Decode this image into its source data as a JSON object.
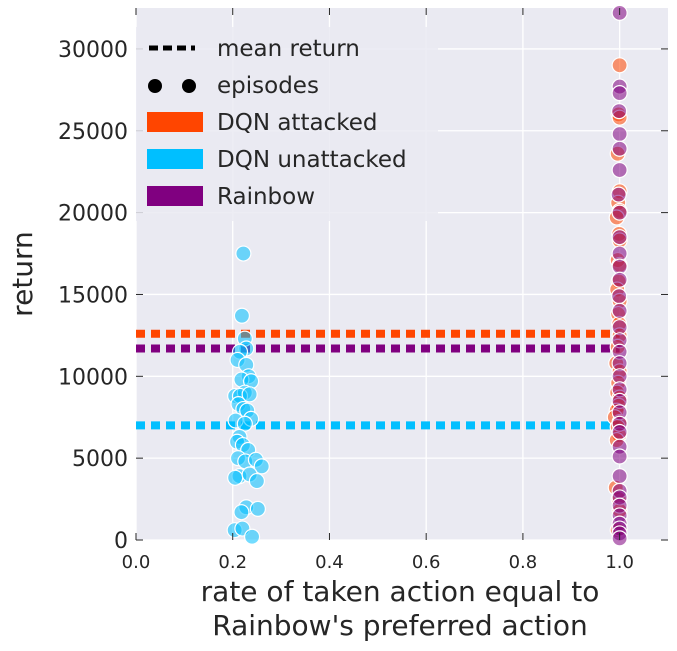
{
  "chart_data": {
    "type": "scatter",
    "xlabel": [
      "rate of taken action equal to",
      "Rainbow's preferred action"
    ],
    "ylabel": "return",
    "xlim": [
      0.0,
      1.1
    ],
    "ylim": [
      0,
      32500
    ],
    "xticks": [
      0.0,
      0.2,
      0.4,
      0.6,
      0.8,
      1.0
    ],
    "xtick_labels": [
      "0.0",
      "0.2",
      "0.4",
      "0.6",
      "0.8",
      "1.0"
    ],
    "yticks": [
      0,
      5000,
      10000,
      15000,
      20000,
      25000,
      30000
    ],
    "ytick_labels": [
      "0",
      "5000",
      "10000",
      "15000",
      "20000",
      "25000",
      "30000"
    ],
    "grid": true,
    "legend_position": "top-left",
    "legend": [
      {
        "label": "mean return",
        "kind": "dashed-line",
        "color": "#000000"
      },
      {
        "label": "episodes",
        "kind": "dots",
        "color": "#000000"
      },
      {
        "label": "DQN attacked",
        "kind": "patch",
        "color": "#ff4500"
      },
      {
        "label": "DQN unattacked",
        "kind": "patch",
        "color": "#00bfff"
      },
      {
        "label": "Rainbow",
        "kind": "patch",
        "color": "#800080"
      }
    ],
    "mean_lines": [
      {
        "series": "DQN attacked",
        "y": 12600,
        "x_range": [
          0.0,
          1.0
        ],
        "color": "#ff4500"
      },
      {
        "series": "Rainbow",
        "y": 11700,
        "x_range": [
          0.0,
          1.0
        ],
        "color": "#800080"
      },
      {
        "series": "DQN unattacked",
        "y": 7000,
        "x_range": [
          0.0,
          1.0
        ],
        "color": "#00bfff"
      }
    ],
    "series": [
      {
        "name": "DQN unattacked",
        "color": "#00bfff",
        "points": [
          [
            0.222,
            17500
          ],
          [
            0.219,
            13700
          ],
          [
            0.225,
            12300
          ],
          [
            0.228,
            11700
          ],
          [
            0.215,
            11500
          ],
          [
            0.21,
            11000
          ],
          [
            0.228,
            10700
          ],
          [
            0.233,
            10000
          ],
          [
            0.218,
            9800
          ],
          [
            0.238,
            9700
          ],
          [
            0.205,
            8800
          ],
          [
            0.225,
            9000
          ],
          [
            0.215,
            8800
          ],
          [
            0.235,
            8900
          ],
          [
            0.212,
            8300
          ],
          [
            0.222,
            8000
          ],
          [
            0.23,
            7900
          ],
          [
            0.206,
            7300
          ],
          [
            0.238,
            7400
          ],
          [
            0.225,
            7100
          ],
          [
            0.214,
            6300
          ],
          [
            0.209,
            6000
          ],
          [
            0.221,
            5800
          ],
          [
            0.232,
            5500
          ],
          [
            0.211,
            5000
          ],
          [
            0.226,
            4800
          ],
          [
            0.248,
            4900
          ],
          [
            0.26,
            4500
          ],
          [
            0.214,
            3900
          ],
          [
            0.205,
            3800
          ],
          [
            0.235,
            4000
          ],
          [
            0.25,
            3600
          ],
          [
            0.228,
            2000
          ],
          [
            0.252,
            1900
          ],
          [
            0.218,
            1700
          ],
          [
            0.204,
            600
          ],
          [
            0.22,
            700
          ],
          [
            0.24,
            200
          ]
        ]
      },
      {
        "name": "DQN attacked",
        "color": "#ff4500",
        "points": [
          [
            1.0,
            29000
          ],
          [
            0.998,
            26000
          ],
          [
            1.0,
            25800
          ],
          [
            0.996,
            23600
          ],
          [
            1.0,
            21300
          ],
          [
            0.997,
            20600
          ],
          [
            1.0,
            20100
          ],
          [
            0.994,
            19700
          ],
          [
            0.999,
            18700
          ],
          [
            1.0,
            18300
          ],
          [
            0.996,
            17100
          ],
          [
            1.0,
            16800
          ],
          [
            0.998,
            15800
          ],
          [
            0.995,
            15300
          ],
          [
            1.0,
            14600
          ],
          [
            0.997,
            13800
          ],
          [
            0.999,
            13200
          ],
          [
            1.0,
            12500
          ],
          [
            0.996,
            11800
          ],
          [
            0.993,
            10800
          ],
          [
            1.0,
            10300
          ],
          [
            0.997,
            9600
          ],
          [
            0.995,
            9000
          ],
          [
            1.0,
            8700
          ],
          [
            0.998,
            8200
          ],
          [
            0.994,
            7900
          ],
          [
            0.99,
            7500
          ],
          [
            1.0,
            7200
          ],
          [
            0.996,
            6900
          ],
          [
            0.999,
            6400
          ],
          [
            0.994,
            6100
          ],
          [
            0.992,
            3200
          ],
          [
            0.998,
            2500
          ],
          [
            1.0,
            1800
          ],
          [
            0.996,
            600
          ]
        ]
      },
      {
        "name": "Rainbow",
        "color": "#800080",
        "points": [
          [
            1.0,
            32200
          ],
          [
            1.0,
            27700
          ],
          [
            1.0,
            27300
          ],
          [
            0.999,
            26200
          ],
          [
            1.0,
            24800
          ],
          [
            1.0,
            23900
          ],
          [
            1.0,
            22600
          ],
          [
            0.998,
            21100
          ],
          [
            1.0,
            20000
          ],
          [
            1.0,
            18500
          ],
          [
            1.0,
            17500
          ],
          [
            1.0,
            16700
          ],
          [
            1.0,
            15900
          ],
          [
            0.999,
            14900
          ],
          [
            1.0,
            14000
          ],
          [
            1.0,
            13000
          ],
          [
            1.0,
            12200
          ],
          [
            1.0,
            11500
          ],
          [
            1.0,
            10800
          ],
          [
            1.0,
            10000
          ],
          [
            1.0,
            9200
          ],
          [
            1.0,
            8500
          ],
          [
            1.0,
            7800
          ],
          [
            1.0,
            7100
          ],
          [
            1.0,
            6600
          ],
          [
            1.0,
            5700
          ],
          [
            1.0,
            5100
          ],
          [
            1.0,
            3900
          ],
          [
            1.0,
            3000
          ],
          [
            1.0,
            2600
          ],
          [
            1.0,
            2100
          ],
          [
            1.0,
            1500
          ],
          [
            1.0,
            1000
          ],
          [
            1.0,
            700
          ],
          [
            1.0,
            400
          ],
          [
            1.0,
            100
          ]
        ]
      }
    ]
  }
}
